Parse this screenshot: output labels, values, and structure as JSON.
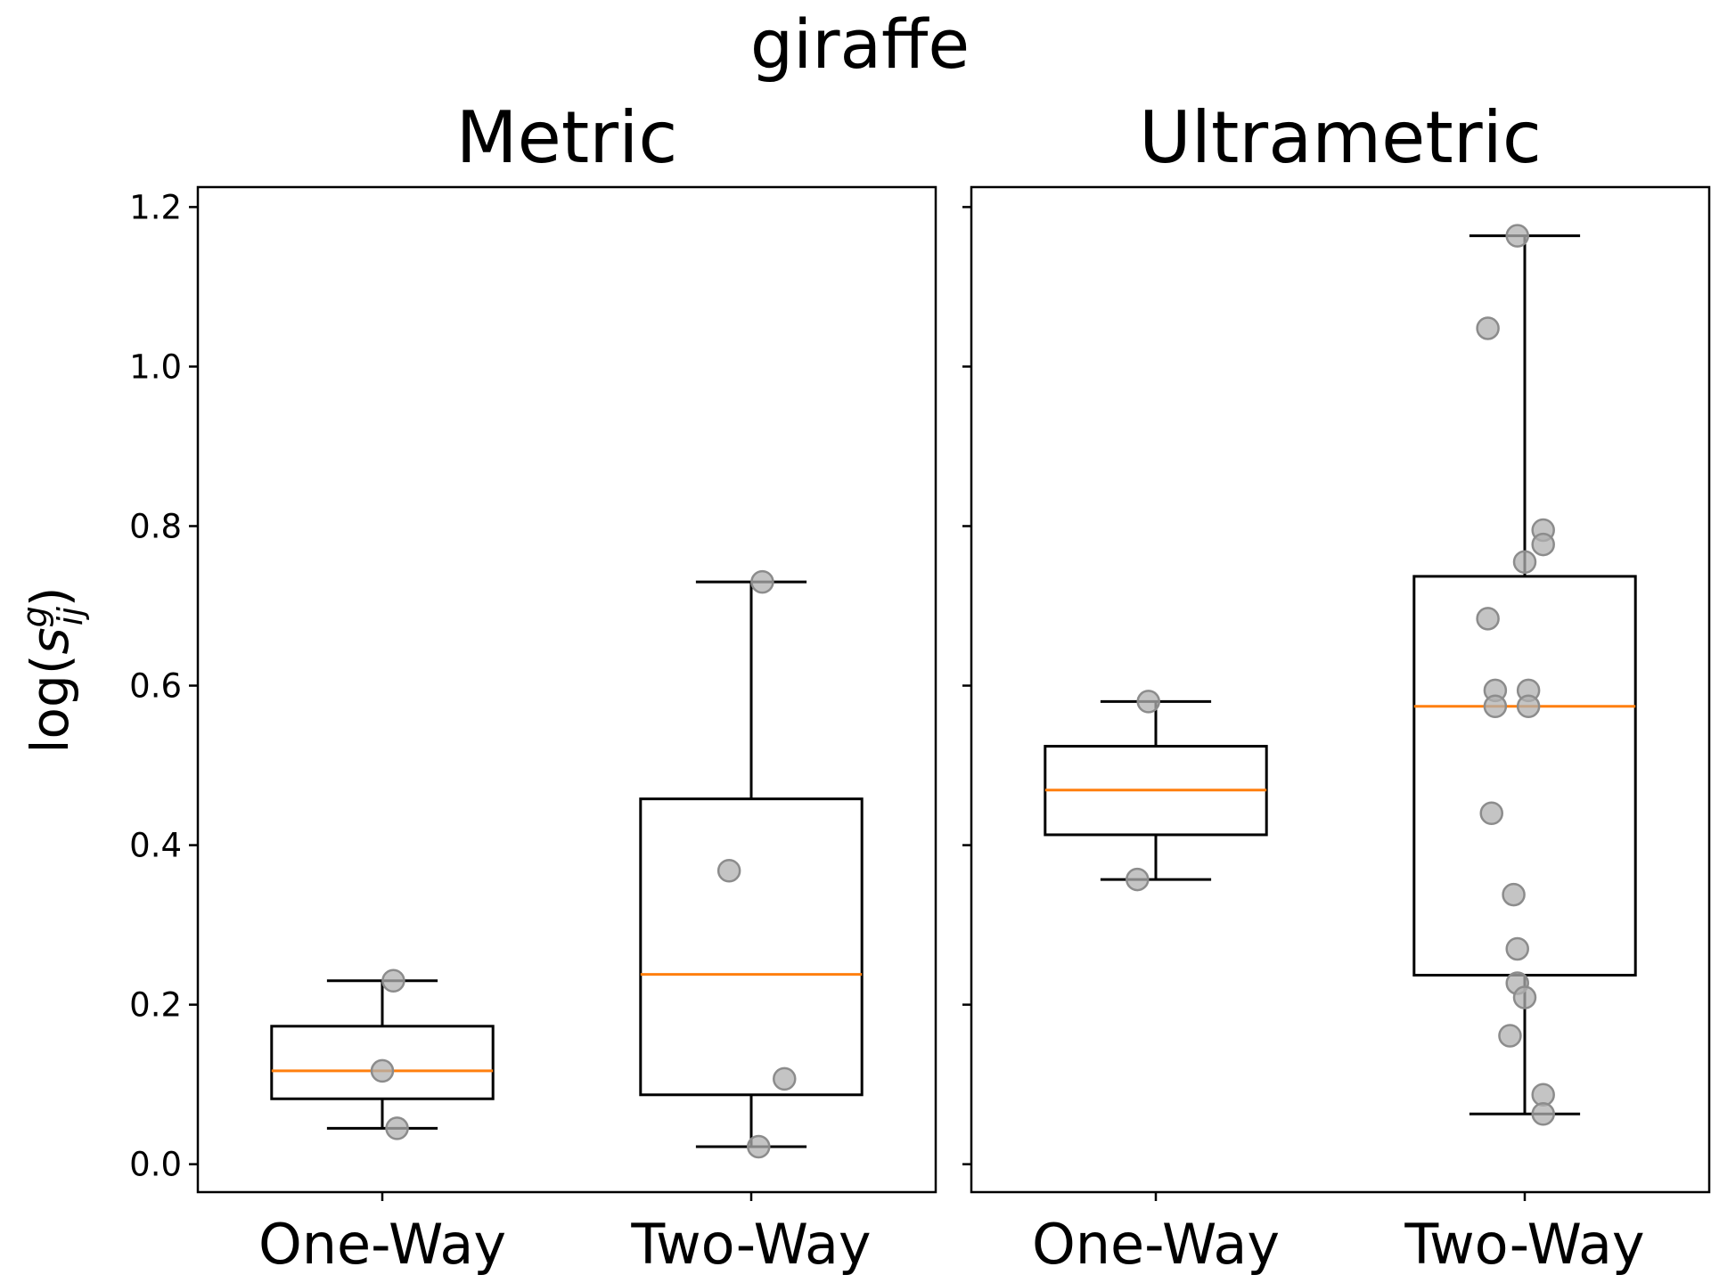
{
  "suptitle": "giraffe",
  "ylabel": {
    "prefix": "log(",
    "base": "s",
    "sup": "g",
    "sub": "ij",
    "suffix": ")"
  },
  "chart_data": [
    {
      "type": "box",
      "title": "Metric",
      "xlabel": "",
      "ylim": [
        -0.035,
        1.225
      ],
      "yticks": [
        "0.0",
        "0.2",
        "0.4",
        "0.6",
        "0.8",
        "1.0",
        "1.2"
      ],
      "categories": [
        "One-Way",
        "Two-Way"
      ],
      "boxes": [
        {
          "name": "One-Way",
          "whisker_low": 0.045,
          "q1": 0.082,
          "median": 0.117,
          "q3": 0.173,
          "whisker_high": 0.23
        },
        {
          "name": "Two-Way",
          "whisker_low": 0.022,
          "q1": 0.087,
          "median": 0.238,
          "q3": 0.458,
          "whisker_high": 0.73
        }
      ],
      "points": [
        {
          "category": "One-Way",
          "jitter": 0.03,
          "y": 0.23
        },
        {
          "category": "One-Way",
          "jitter": 0.0,
          "y": 0.117
        },
        {
          "category": "One-Way",
          "jitter": 0.04,
          "y": 0.045
        },
        {
          "category": "Two-Way",
          "jitter": 0.03,
          "y": 0.73
        },
        {
          "category": "Two-Way",
          "jitter": -0.06,
          "y": 0.368
        },
        {
          "category": "Two-Way",
          "jitter": 0.09,
          "y": 0.107
        },
        {
          "category": "Two-Way",
          "jitter": 0.02,
          "y": 0.022
        }
      ]
    },
    {
      "type": "box",
      "title": "Ultrametric",
      "xlabel": "",
      "ylim": [
        -0.035,
        1.225
      ],
      "yticks": [],
      "categories": [
        "One-Way",
        "Two-Way"
      ],
      "boxes": [
        {
          "name": "One-Way",
          "whisker_low": 0.357,
          "q1": 0.413,
          "median": 0.469,
          "q3": 0.524,
          "whisker_high": 0.58
        },
        {
          "name": "Two-Way",
          "whisker_low": 0.063,
          "q1": 0.237,
          "median": 0.574,
          "q3": 0.737,
          "whisker_high": 1.164
        }
      ],
      "points": [
        {
          "category": "One-Way",
          "jitter": -0.05,
          "y": 0.357
        },
        {
          "category": "One-Way",
          "jitter": -0.02,
          "y": 0.58
        },
        {
          "category": "Two-Way",
          "jitter": -0.02,
          "y": 1.164
        },
        {
          "category": "Two-Way",
          "jitter": -0.1,
          "y": 1.048
        },
        {
          "category": "Two-Way",
          "jitter": 0.05,
          "y": 0.795
        },
        {
          "category": "Two-Way",
          "jitter": 0.05,
          "y": 0.777
        },
        {
          "category": "Two-Way",
          "jitter": 0.0,
          "y": 0.755
        },
        {
          "category": "Two-Way",
          "jitter": -0.1,
          "y": 0.684
        },
        {
          "category": "Two-Way",
          "jitter": -0.08,
          "y": 0.594
        },
        {
          "category": "Two-Way",
          "jitter": 0.01,
          "y": 0.594
        },
        {
          "category": "Two-Way",
          "jitter": -0.08,
          "y": 0.574
        },
        {
          "category": "Two-Way",
          "jitter": 0.01,
          "y": 0.574
        },
        {
          "category": "Two-Way",
          "jitter": -0.09,
          "y": 0.44
        },
        {
          "category": "Two-Way",
          "jitter": -0.03,
          "y": 0.338
        },
        {
          "category": "Two-Way",
          "jitter": -0.02,
          "y": 0.27
        },
        {
          "category": "Two-Way",
          "jitter": -0.02,
          "y": 0.227
        },
        {
          "category": "Two-Way",
          "jitter": 0.0,
          "y": 0.209
        },
        {
          "category": "Two-Way",
          "jitter": -0.04,
          "y": 0.161
        },
        {
          "category": "Two-Way",
          "jitter": 0.05,
          "y": 0.087
        },
        {
          "category": "Two-Way",
          "jitter": 0.05,
          "y": 0.063
        }
      ]
    }
  ],
  "colors": {
    "median": "#ff7f0e",
    "box": "#000000",
    "point_fill": "#b0b0b0",
    "point_edge": "#8c8c8c"
  }
}
